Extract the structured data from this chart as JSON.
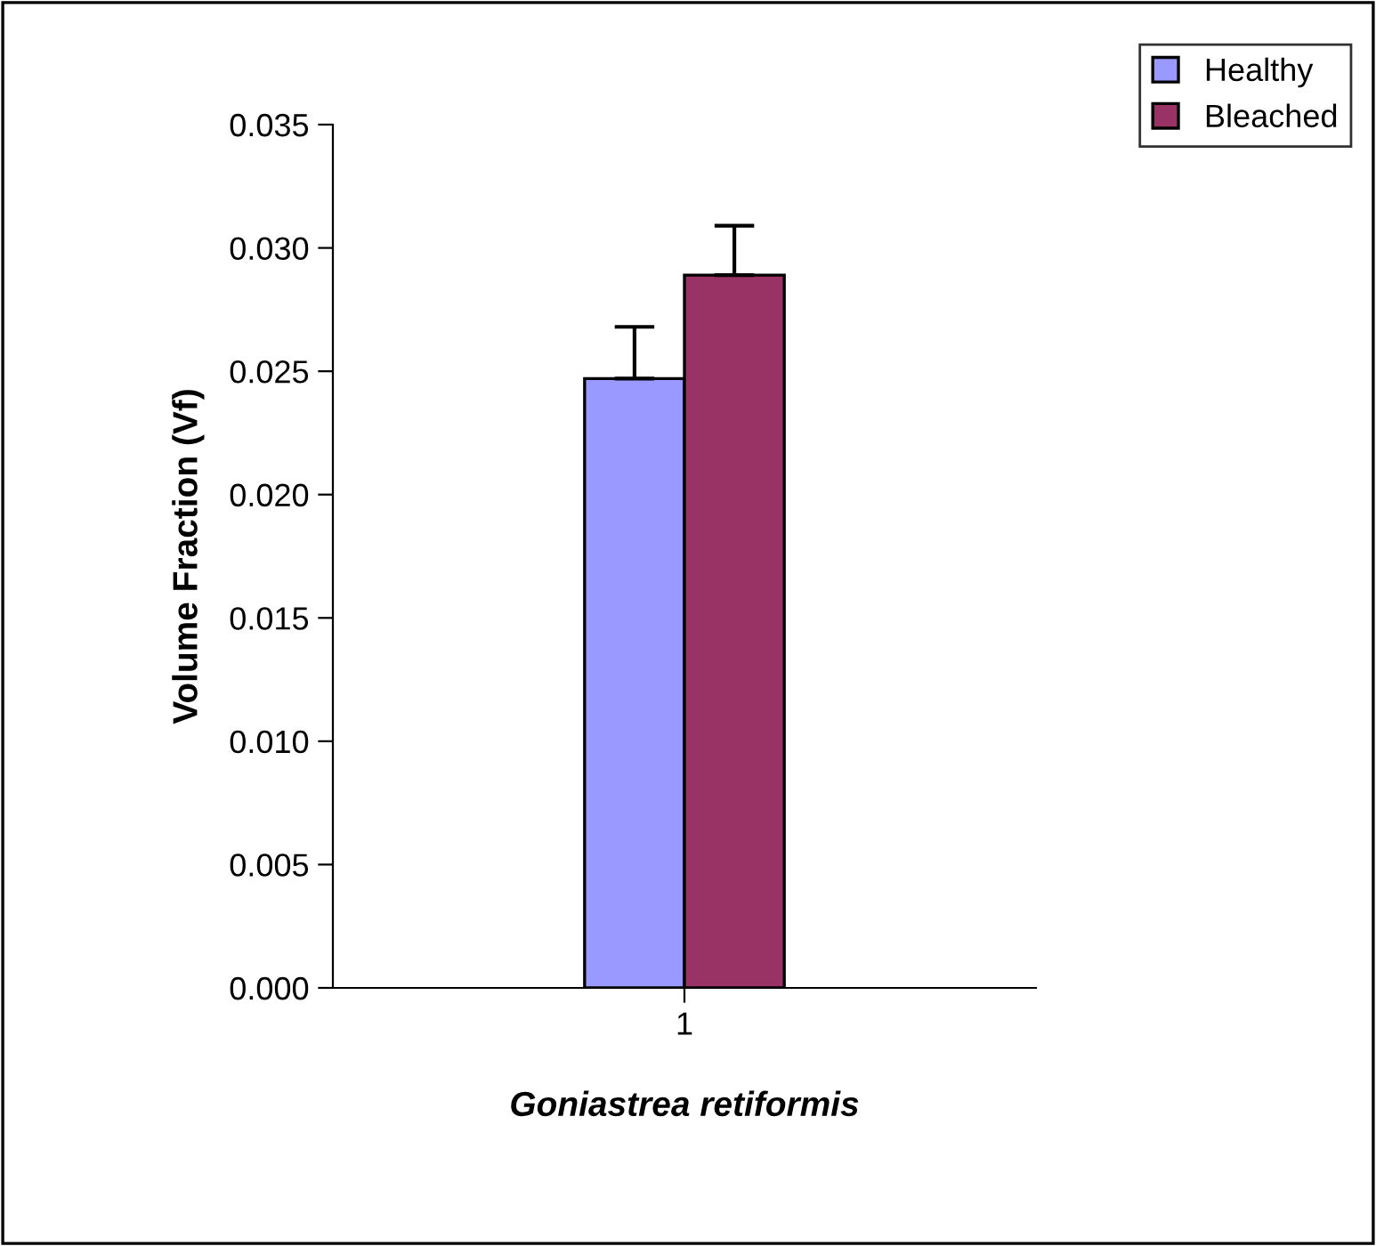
{
  "chart_data": {
    "type": "bar",
    "categories": [
      "1"
    ],
    "xlabel": "Goniastrea retiformis",
    "ylabel": "Volume Fraction (Vf)",
    "series": [
      {
        "name": "Healthy",
        "color": "#9999ff",
        "values": [
          0.0247
        ],
        "errors": [
          0.0021
        ]
      },
      {
        "name": "Bleached",
        "color": "#993366",
        "values": [
          0.0289
        ],
        "errors": [
          0.002
        ]
      }
    ],
    "ylim": [
      0,
      0.035
    ],
    "yticks": [
      {
        "value": 0,
        "label": "0.000"
      },
      {
        "value": 0.005,
        "label": "0.005"
      },
      {
        "value": 0.01,
        "label": "0.010"
      },
      {
        "value": 0.015,
        "label": "0.015"
      },
      {
        "value": 0.02,
        "label": "0.020"
      },
      {
        "value": 0.025,
        "label": "0.025"
      },
      {
        "value": 0.03,
        "label": "0.030"
      },
      {
        "value": 0.035,
        "label": "0.035"
      }
    ],
    "grid": false,
    "legend": "top right"
  }
}
